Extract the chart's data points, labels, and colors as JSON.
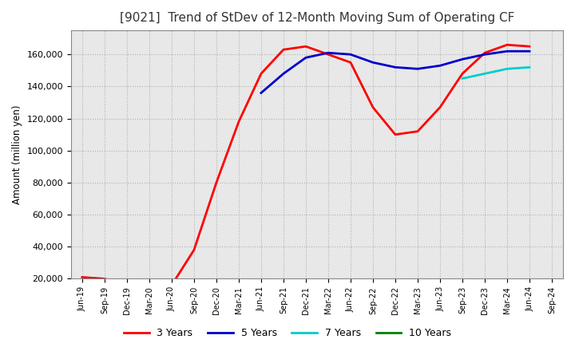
{
  "title": "[9021]  Trend of StDev of 12-Month Moving Sum of Operating CF",
  "ylabel": "Amount (million yen)",
  "background_color": "#ffffff",
  "plot_bg_color": "#e8e8e8",
  "grid_color": "#aaaaaa",
  "title_fontsize": 11,
  "tick_labels": [
    "Jun-19",
    "Sep-19",
    "Dec-19",
    "Mar-20",
    "Jun-20",
    "Sep-20",
    "Dec-20",
    "Mar-21",
    "Jun-21",
    "Sep-21",
    "Dec-21",
    "Mar-22",
    "Jun-22",
    "Sep-22",
    "Dec-22",
    "Mar-23",
    "Jun-23",
    "Sep-23",
    "Dec-23",
    "Mar-24",
    "Jun-24",
    "Sep-24"
  ],
  "series_3y": {
    "color": "#ff0000",
    "label": "3 Years",
    "x": [
      0,
      1,
      2,
      3,
      4,
      5,
      6,
      7,
      8,
      9,
      10,
      11,
      12,
      13,
      14,
      15,
      16,
      17,
      18,
      19,
      20
    ],
    "y": [
      21000,
      20000,
      16000,
      13500,
      16000,
      38000,
      80000,
      118000,
      148000,
      163000,
      165000,
      160000,
      155000,
      127000,
      110000,
      112000,
      127000,
      148000,
      161000,
      166000,
      165000
    ]
  },
  "series_5y": {
    "color": "#0000cc",
    "label": "5 Years",
    "x": [
      8,
      9,
      10,
      11,
      12,
      13,
      14,
      15,
      16,
      17,
      18,
      19,
      20
    ],
    "y": [
      136000,
      148000,
      158000,
      161000,
      160000,
      155000,
      152000,
      151000,
      153000,
      157000,
      160000,
      162000,
      162000
    ]
  },
  "series_7y": {
    "color": "#00cccc",
    "label": "7 Years",
    "x": [
      17,
      18,
      19,
      20
    ],
    "y": [
      145000,
      148000,
      151000,
      152000
    ]
  },
  "series_10y": {
    "color": "#008000",
    "label": "10 Years",
    "x": [],
    "y": []
  },
  "ylim": [
    20000,
    175000
  ],
  "yticks": [
    20000,
    40000,
    60000,
    80000,
    100000,
    120000,
    140000,
    160000
  ],
  "linewidth": 2.0
}
